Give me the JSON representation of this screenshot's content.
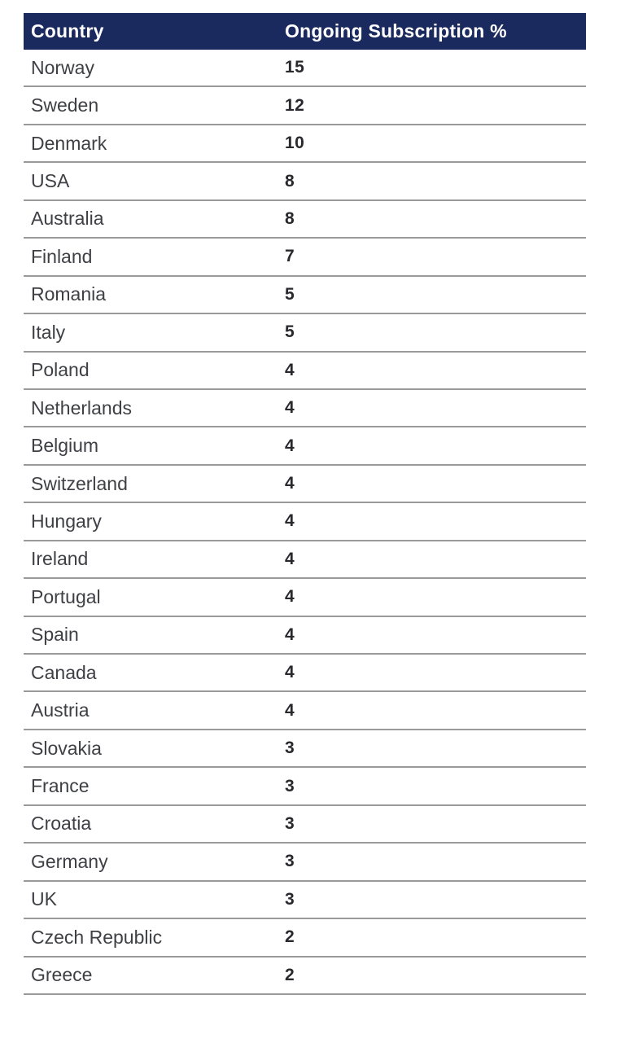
{
  "chart_data": {
    "type": "table",
    "columns": [
      "Country",
      "Ongoing Subscription %"
    ],
    "rows": [
      [
        "Norway",
        "15"
      ],
      [
        "Sweden",
        "12"
      ],
      [
        "Denmark",
        "10"
      ],
      [
        "USA",
        "8"
      ],
      [
        "Australia",
        "8"
      ],
      [
        "Finland",
        "7"
      ],
      [
        "Romania",
        "5"
      ],
      [
        "Italy",
        "5"
      ],
      [
        "Poland",
        "4"
      ],
      [
        "Netherlands",
        "4"
      ],
      [
        "Belgium",
        "4"
      ],
      [
        "Switzerland",
        "4"
      ],
      [
        "Hungary",
        "4"
      ],
      [
        "Ireland",
        "4"
      ],
      [
        "Portugal",
        "4"
      ],
      [
        "Spain",
        "4"
      ],
      [
        "Canada",
        "4"
      ],
      [
        "Austria",
        "4"
      ],
      [
        "Slovakia",
        "3"
      ],
      [
        "France",
        "3"
      ],
      [
        "Croatia",
        "3"
      ],
      [
        "Germany",
        "3"
      ],
      [
        "UK",
        "3"
      ],
      [
        "Czech Republic",
        "2"
      ],
      [
        "Greece",
        "2"
      ]
    ]
  },
  "colors": {
    "header_background": "#1b2a5e",
    "header_text": "#ffffff",
    "row_text": "#3f4045",
    "value_text": "#28282d",
    "divider": "#9a9a9a"
  }
}
